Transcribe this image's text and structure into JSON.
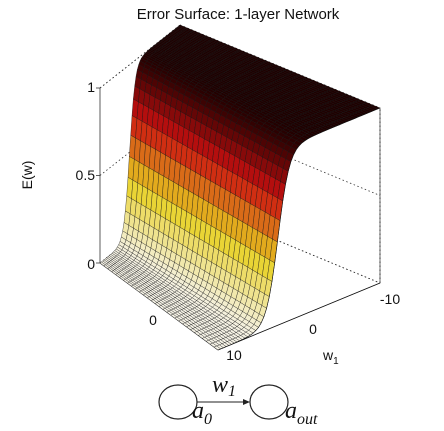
{
  "chart_data": {
    "type": "surface",
    "title": "Error Surface: 1-layer Network",
    "zlabel": "E(w)",
    "xlabel": "w",
    "xlabel_sub": "1",
    "z_ticks": [
      "0",
      "0.5",
      "1"
    ],
    "w1_ticks": [
      "-10",
      "0"
    ],
    "front_ticks": [
      "0",
      "10"
    ],
    "w1_range": [
      -10,
      10
    ],
    "z_range": [
      0,
      1
    ],
    "surface": "E(w) = sigmoid(w1) plateau: ~1 for w1 < 0, ~0 for w1 > 5, shaded black-red-yellow-white by height",
    "grid": true
  },
  "diagram": {
    "weight_label": "w",
    "weight_sub": "1",
    "input_node": "a",
    "input_sub": "0",
    "output_node": "a",
    "output_sub": "out"
  },
  "colors": {
    "low": "#f5f2e6",
    "mid": "#e8d020",
    "high": "#cc1010",
    "top": "#200000"
  }
}
